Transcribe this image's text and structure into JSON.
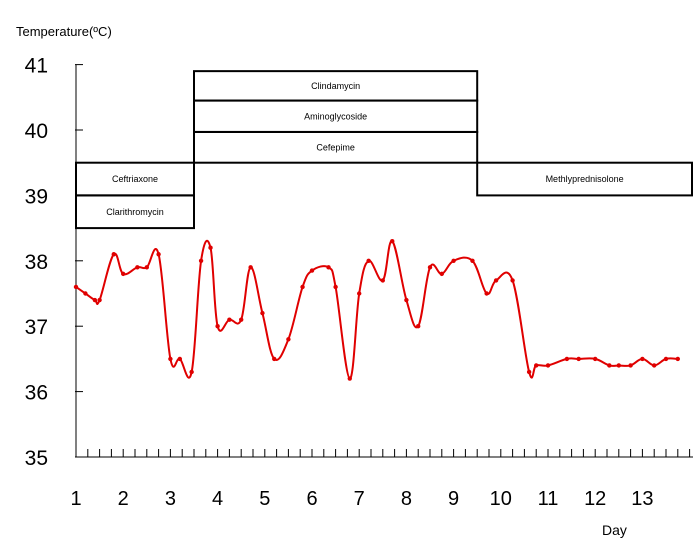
{
  "chart_data": {
    "type": "line",
    "title": "",
    "ylabel": "Temperature(ºC)",
    "xlabel": "Day",
    "ylim": [
      35,
      41
    ],
    "xlim": [
      1,
      14.3
    ],
    "yticks": [
      "35",
      "36",
      "37",
      "38",
      "39",
      "40",
      "41"
    ],
    "xticks": [
      "1",
      "2",
      "3",
      "4",
      "5",
      "6",
      "7",
      "8",
      "9",
      "10",
      "11",
      "12",
      "13"
    ],
    "grid": false,
    "series": [
      {
        "color": "#e00000",
        "x": [
          1.0,
          1.2,
          1.4,
          1.5,
          1.8,
          2.0,
          2.3,
          2.5,
          2.75,
          3.0,
          3.2,
          3.45,
          3.65,
          3.85,
          4.0,
          4.25,
          4.5,
          4.7,
          4.95,
          5.2,
          5.5,
          5.8,
          6.0,
          6.35,
          6.5,
          6.8,
          7.0,
          7.2,
          7.5,
          7.7,
          8.0,
          8.25,
          8.5,
          8.75,
          9.0,
          9.4,
          9.7,
          9.9,
          10.25,
          10.6,
          10.75,
          11.0,
          11.4,
          11.65,
          12.0,
          12.3,
          12.5,
          12.75,
          13.0,
          13.25,
          13.5,
          13.75
        ],
        "y": [
          37.6,
          37.5,
          37.4,
          37.4,
          38.1,
          37.8,
          37.9,
          37.9,
          38.1,
          36.5,
          36.5,
          36.3,
          38.0,
          38.2,
          37.0,
          37.1,
          37.1,
          37.9,
          37.2,
          36.5,
          36.8,
          37.6,
          37.85,
          37.9,
          37.6,
          36.2,
          37.5,
          38.0,
          37.7,
          38.3,
          37.4,
          37.0,
          37.9,
          37.8,
          38.0,
          38.0,
          37.5,
          37.7,
          37.7,
          36.3,
          36.4,
          36.4,
          36.5,
          36.5,
          36.5,
          36.4,
          36.4,
          36.4,
          36.5,
          36.4,
          36.5,
          36.5
        ]
      }
    ],
    "annotations": [
      {
        "label": "Ceftriaxone",
        "x_start": 1.0,
        "x_end": 3.5,
        "y_low": 39.0,
        "y_high": 39.5
      },
      {
        "label": "Clarithromycin",
        "x_start": 1.0,
        "x_end": 3.5,
        "y_low": 38.5,
        "y_high": 39.0
      },
      {
        "label": "Clindamycin",
        "x_start": 3.5,
        "x_end": 9.5,
        "y_low": 40.45,
        "y_high": 40.9
      },
      {
        "label": "Aminoglycoside",
        "x_start": 3.5,
        "x_end": 9.5,
        "y_low": 39.97,
        "y_high": 40.45
      },
      {
        "label": "Cefepime",
        "x_start": 3.5,
        "x_end": 9.5,
        "y_low": 39.5,
        "y_high": 39.97
      },
      {
        "label": "Methlyprednisolone",
        "x_start": 9.5,
        "x_end": 14.3,
        "y_low": 39.0,
        "y_high": 39.5
      }
    ]
  }
}
